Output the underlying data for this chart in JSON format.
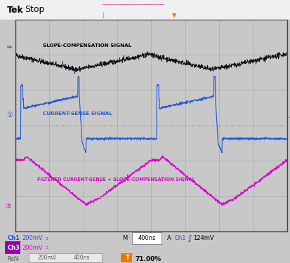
{
  "bg_color": "#c8c8c8",
  "screen_bg": "#ffffff",
  "grid_color": "#aaaaaa",
  "ch1_color": "#2255dd",
  "ch3_color": "#dd00cc",
  "ref4_color": "#111111",
  "label_slope": "SLOPE-COMPENSATION SIGNAL",
  "label_current": "CURRENT-SENSE SIGNAL",
  "label_filtered": "FILTERED CURRENT-SENSE + SLOPE-COMPENSATION SIGNAL",
  "nx": 1200,
  "period": 600
}
